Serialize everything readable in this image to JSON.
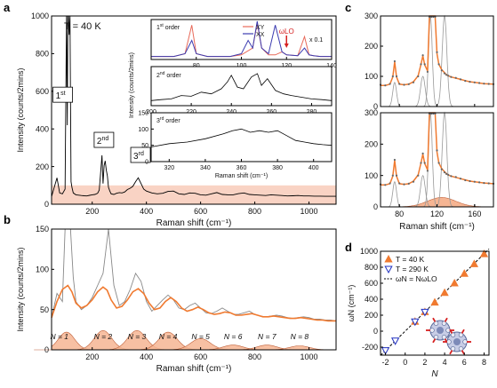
{
  "chart_data": [
    {
      "panel": "a",
      "type": "line",
      "annotation": "T = 40 K",
      "xlabel": "Raman shift (cm⁻¹)",
      "ylabel": "Intensity (counts/2mins)",
      "xlim": [
        50,
        1100
      ],
      "ylim": [
        0,
        1000
      ],
      "xticks": [
        200,
        400,
        600,
        800,
        1000
      ],
      "yticks": [
        0,
        200,
        400,
        600,
        800,
        1000
      ],
      "order_labels": [
        {
          "text": "1st",
          "x": 88,
          "y": 570
        },
        {
          "text": "2nd",
          "x": 240,
          "y": 330
        },
        {
          "text": "3rd",
          "x": 375,
          "y": 250
        }
      ],
      "shaded_band_y": [
        0,
        100
      ],
      "x": [
        50,
        70,
        80,
        90,
        100,
        105,
        108,
        110,
        112,
        115,
        118,
        122,
        125,
        130,
        140,
        150,
        160,
        170,
        180,
        190,
        200,
        210,
        220,
        226,
        230,
        236,
        240,
        244,
        248,
        252,
        256,
        260,
        265,
        270,
        280,
        290,
        300,
        310,
        320,
        330,
        340,
        350,
        360,
        370,
        380,
        390,
        400,
        420,
        440,
        460,
        480,
        500,
        520,
        540,
        560,
        580,
        600,
        620,
        640,
        660,
        680,
        700,
        720,
        740,
        760,
        780,
        800,
        820,
        840,
        860,
        880,
        900,
        920,
        940,
        960,
        980,
        1000,
        1020,
        1040,
        1060,
        1080,
        1100
      ],
      "y": [
        40,
        140,
        60,
        55,
        80,
        1000,
        420,
        1000,
        1000,
        900,
        1000,
        120,
        90,
        60,
        50,
        48,
        46,
        45,
        44,
        47,
        50,
        52,
        58,
        75,
        150,
        260,
        110,
        205,
        230,
        180,
        150,
        90,
        70,
        55,
        52,
        58,
        62,
        60,
        65,
        78,
        85,
        95,
        120,
        140,
        110,
        80,
        70,
        60,
        55,
        58,
        68,
        70,
        55,
        52,
        60,
        58,
        50,
        48,
        55,
        62,
        52,
        50,
        50,
        56,
        60,
        52,
        50,
        48,
        46,
        50,
        48,
        46,
        44,
        45,
        46,
        44,
        44,
        43,
        43,
        42,
        42,
        42
      ],
      "inset": {
        "first_order": {
          "label": "1st order",
          "legend": [
            "XY",
            "XX"
          ],
          "scale_note": "x 0.1",
          "lo_label": "ωLO",
          "xlim": [
            60,
            140
          ],
          "xticks": [
            80,
            100,
            120,
            140
          ],
          "series": [
            {
              "name": "XY",
              "color": "#e86a5a",
              "x": [
                60,
                70,
                75,
                78,
                80,
                85,
                95,
                100,
                105,
                107,
                109,
                112,
                115,
                118,
                120,
                125,
                128,
                130,
                132,
                135,
                140
              ],
              "y": [
                0.08,
                0.08,
                0.15,
                0.9,
                0.15,
                0.08,
                0.08,
                0.12,
                0.3,
                0.95,
                0.3,
                0.12,
                0.12,
                0.2,
                0.12,
                0.1,
                0.6,
                0.12,
                0.1,
                0.08,
                0.08
              ]
            },
            {
              "name": "XX",
              "color": "#3b3bb0",
              "x": [
                60,
                70,
                75,
                78,
                80,
                85,
                95,
                100,
                103,
                105,
                107,
                109,
                112,
                115,
                118,
                120,
                125,
                128,
                130,
                132,
                135,
                140
              ],
              "y": [
                0.08,
                0.08,
                0.15,
                0.5,
                0.15,
                0.08,
                0.08,
                0.15,
                0.5,
                0.3,
                1.0,
                0.3,
                0.15,
                0.9,
                0.2,
                0.12,
                0.1,
                0.3,
                0.12,
                0.1,
                0.08,
                0.08
              ]
            }
          ]
        },
        "second_order": {
          "label": "2nd order",
          "xlim": [
            200,
            290
          ],
          "xticks": [
            200,
            220,
            240,
            260,
            280
          ],
          "x": [
            200,
            205,
            210,
            215,
            220,
            225,
            230,
            235,
            238,
            240,
            243,
            246,
            250,
            253,
            255,
            258,
            262,
            266,
            270,
            275,
            280,
            285,
            290
          ],
          "y": [
            0.15,
            0.18,
            0.2,
            0.3,
            0.28,
            0.4,
            0.35,
            0.5,
            0.7,
            0.9,
            0.55,
            0.5,
            0.85,
            0.95,
            0.6,
            0.8,
            0.45,
            0.35,
            0.3,
            0.25,
            0.2,
            0.18,
            0.15
          ]
        },
        "third_order": {
          "label": "3rd order",
          "ylim": [
            0,
            150
          ],
          "yticks": [
            0,
            50,
            100,
            150
          ],
          "xlim": [
            310,
            410
          ],
          "xticks": [
            320,
            340,
            360,
            380,
            400
          ],
          "x": [
            310,
            320,
            330,
            340,
            350,
            355,
            360,
            365,
            370,
            375,
            380,
            385,
            390,
            395,
            400,
            405,
            410
          ],
          "y": [
            45,
            55,
            60,
            70,
            85,
            95,
            100,
            90,
            95,
            90,
            95,
            80,
            65,
            60,
            55,
            52,
            50
          ]
        },
        "ylabel": "Intensity (counts/2mins)",
        "xlabel": "Raman shift (cm⁻¹)"
      }
    },
    {
      "panel": "b",
      "type": "line",
      "xlabel": "Raman shift (cm⁻¹)",
      "ylabel": "Intensity (counts/2mins)",
      "xlim": [
        50,
        1100
      ],
      "ylim": [
        0,
        150
      ],
      "xticks": [
        200,
        400,
        600,
        800,
        1000
      ],
      "yticks": [
        0,
        50,
        100,
        150
      ],
      "fit_color": "#f07a30",
      "data_x": [
        50,
        70,
        90,
        100,
        110,
        120,
        130,
        140,
        160,
        180,
        200,
        220,
        240,
        260,
        280,
        300,
        320,
        340,
        360,
        380,
        400,
        420,
        440,
        460,
        480,
        500,
        520,
        540,
        560,
        580,
        600,
        620,
        640,
        660,
        680,
        700,
        720,
        740,
        760,
        780,
        800,
        820,
        840,
        860,
        880,
        900,
        920,
        940,
        960,
        980,
        1000,
        1020,
        1040,
        1060,
        1080,
        1100
      ],
      "data_y": [
        40,
        70,
        60,
        150,
        150,
        150,
        90,
        60,
        50,
        55,
        65,
        80,
        95,
        150,
        80,
        55,
        60,
        75,
        95,
        85,
        60,
        48,
        55,
        62,
        68,
        62,
        52,
        50,
        55,
        58,
        52,
        46,
        45,
        48,
        52,
        48,
        44,
        44,
        46,
        48,
        44,
        42,
        41,
        42,
        43,
        42,
        40,
        39,
        40,
        41,
        40,
        38,
        38,
        37,
        37,
        36
      ],
      "fit_x": [
        50,
        70,
        90,
        110,
        125,
        140,
        160,
        180,
        200,
        220,
        240,
        255,
        270,
        290,
        310,
        330,
        350,
        370,
        390,
        410,
        430,
        450,
        470,
        490,
        510,
        530,
        550,
        570,
        590,
        610,
        630,
        650,
        670,
        690,
        710,
        730,
        750,
        770,
        790,
        810,
        830,
        850,
        870,
        890,
        910,
        930,
        950,
        970,
        990,
        1010,
        1030,
        1050,
        1070,
        1090,
        1100
      ],
      "fit_y": [
        40,
        60,
        75,
        80,
        72,
        58,
        52,
        55,
        62,
        72,
        78,
        74,
        62,
        52,
        54,
        62,
        72,
        76,
        70,
        58,
        50,
        52,
        60,
        65,
        60,
        52,
        48,
        50,
        53,
        50,
        46,
        44,
        45,
        47,
        46,
        43,
        43,
        44,
        45,
        43,
        41,
        41,
        42,
        41,
        40,
        39,
        39,
        40,
        39,
        38,
        37,
        37,
        36,
        36,
        36
      ],
      "peaks": [
        {
          "label": "N = 1",
          "center": 105,
          "height": 22,
          "width": 30
        },
        {
          "label": "N = 2",
          "center": 240,
          "height": 24,
          "width": 32
        },
        {
          "label": "N = 3",
          "center": 365,
          "height": 24,
          "width": 34
        },
        {
          "label": "N = 4",
          "center": 480,
          "height": 22,
          "width": 34
        },
        {
          "label": "N = 5",
          "center": 600,
          "height": 14,
          "width": 36
        },
        {
          "label": "N = 6",
          "center": 720,
          "height": 6,
          "width": 36
        },
        {
          "label": "N = 7",
          "center": 845,
          "height": 6,
          "width": 36
        },
        {
          "label": "N = 8",
          "center": 965,
          "height": 5,
          "width": 36
        }
      ]
    },
    {
      "panel": "c",
      "type": "line",
      "xlabel": "Raman shift (cm⁻¹)",
      "xlim": [
        60,
        180
      ],
      "xticks": [
        80,
        120,
        160
      ],
      "ylim": [
        0,
        300
      ],
      "yticks": [
        0,
        100,
        200,
        300
      ],
      "subplots": [
        {
          "data_x": [
            60,
            65,
            70,
            73,
            75,
            77,
            80,
            85,
            90,
            95,
            100,
            103,
            105,
            107,
            110,
            112,
            114,
            116,
            118,
            120,
            122,
            125,
            128,
            130,
            132,
            135,
            140,
            145,
            150,
            155,
            160,
            165,
            170,
            175,
            180
          ],
          "data_y": [
            72,
            70,
            75,
            100,
            150,
            100,
            75,
            72,
            74,
            80,
            100,
            140,
            170,
            140,
            115,
            300,
            300,
            300,
            300,
            180,
            140,
            120,
            110,
            105,
            102,
            98,
            95,
            90,
            85,
            82,
            80,
            78,
            76,
            75,
            74
          ],
          "fit_y": [
            70,
            70,
            74,
            98,
            148,
            98,
            74,
            72,
            74,
            82,
            102,
            140,
            168,
            138,
            118,
            300,
            300,
            300,
            300,
            175,
            140,
            122,
            112,
            106,
            102,
            98,
            94,
            90,
            86,
            82,
            80,
            78,
            76,
            75,
            74
          ],
          "components": [
            {
              "center": 75,
              "height": 80,
              "width": 2
            },
            {
              "center": 105,
              "height": 100,
              "width": 2.5
            },
            {
              "center": 113,
              "height": 300,
              "width": 2
            },
            {
              "center": 128,
              "height": 300,
              "width": 2.5
            }
          ],
          "shaded": false
        },
        {
          "data_x": [
            60,
            65,
            70,
            73,
            75,
            77,
            80,
            85,
            90,
            95,
            100,
            103,
            105,
            107,
            110,
            112,
            114,
            116,
            118,
            120,
            122,
            125,
            128,
            130,
            132,
            135,
            140,
            145,
            150,
            155,
            160,
            165,
            170,
            175,
            180
          ],
          "data_y": [
            72,
            70,
            75,
            100,
            150,
            100,
            75,
            72,
            74,
            80,
            100,
            140,
            170,
            140,
            115,
            300,
            300,
            300,
            300,
            180,
            140,
            120,
            110,
            105,
            102,
            98,
            95,
            90,
            85,
            82,
            80,
            78,
            76,
            75,
            74
          ],
          "fit_y": [
            70,
            70,
            74,
            98,
            148,
            98,
            74,
            72,
            74,
            82,
            102,
            140,
            168,
            138,
            118,
            300,
            300,
            300,
            300,
            175,
            140,
            122,
            112,
            106,
            102,
            98,
            94,
            90,
            86,
            82,
            80,
            78,
            76,
            75,
            74
          ],
          "components": [
            {
              "center": 75,
              "height": 80,
              "width": 2
            },
            {
              "center": 105,
              "height": 100,
              "width": 2.5
            },
            {
              "center": 113,
              "height": 300,
              "width": 2
            },
            {
              "center": 128,
              "height": 300,
              "width": 2.5
            }
          ],
          "broad_band": {
            "center": 125,
            "height": 30,
            "width": 15
          },
          "shaded": true
        }
      ]
    },
    {
      "panel": "d",
      "type": "scatter",
      "xlabel": "N",
      "ylabel": "ωN (cm⁻¹)",
      "xlim": [
        -2.5,
        8.5
      ],
      "ylim": [
        -300,
        1000
      ],
      "xticks": [
        -2,
        0,
        2,
        4,
        6,
        8
      ],
      "yticks": [
        -200,
        0,
        200,
        400,
        600,
        800,
        1000
      ],
      "series": [
        {
          "name": "T = 40 K",
          "marker": "triangle-up",
          "color": "#f07a30",
          "x": [
            1,
            2,
            3,
            4,
            5,
            6,
            7,
            8
          ],
          "y": [
            120,
            240,
            360,
            480,
            600,
            720,
            840,
            965
          ]
        },
        {
          "name": "T = 290 K",
          "marker": "triangle-down",
          "color": "#2030c0",
          "x": [
            -2,
            -1,
            1,
            2
          ],
          "y": [
            -240,
            -120,
            120,
            240
          ]
        }
      ],
      "fit_label": "ωN = NωLO",
      "fit_slope": 121
    }
  ],
  "panel_letters": [
    "a",
    "b",
    "c",
    "d"
  ]
}
